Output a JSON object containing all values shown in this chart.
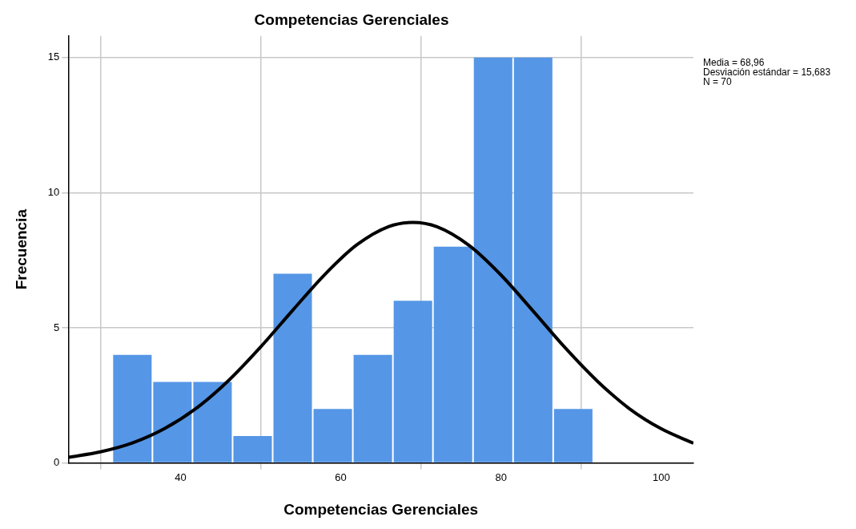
{
  "chart_data": {
    "type": "histogram",
    "title": "Competencias Gerenciales",
    "xlabel": "Competencias Gerenciales",
    "ylabel": "Frecuencia",
    "bins": [
      31.5,
      36.5,
      41.5,
      46.5,
      51.5,
      56.5,
      61.5,
      66.5,
      71.5,
      76.5,
      81.5,
      86.5,
      91.5
    ],
    "values": [
      4,
      3,
      3,
      1,
      7,
      2,
      4,
      6,
      8,
      15,
      15,
      2
    ],
    "color": "#5596e6",
    "series": [
      {
        "type": "line",
        "color": "#000000",
        "x": [
          26,
          30,
          34,
          38,
          42,
          46,
          50,
          54,
          58,
          62,
          66,
          69,
          72,
          76,
          80,
          84,
          88,
          92,
          96,
          100,
          104
        ],
        "values": [
          0.21,
          0.41,
          0.74,
          1.27,
          2.03,
          3.05,
          4.29,
          5.65,
          6.97,
          8.07,
          8.75,
          8.9,
          8.74,
          8.05,
          6.95,
          5.62,
          4.26,
          3.03,
          2.01,
          1.26,
          0.73
        ]
      }
    ],
    "xlim": [
      26,
      104
    ],
    "xticks": [
      40,
      60,
      80,
      100
    ],
    "ylim": [
      0,
      15.8
    ],
    "yticks": [
      0,
      5,
      10,
      15
    ],
    "grid": true,
    "legend": false,
    "annotations": [
      "Media = 68,96",
      "Desviación estándar = 15,683",
      "N = 70"
    ]
  }
}
